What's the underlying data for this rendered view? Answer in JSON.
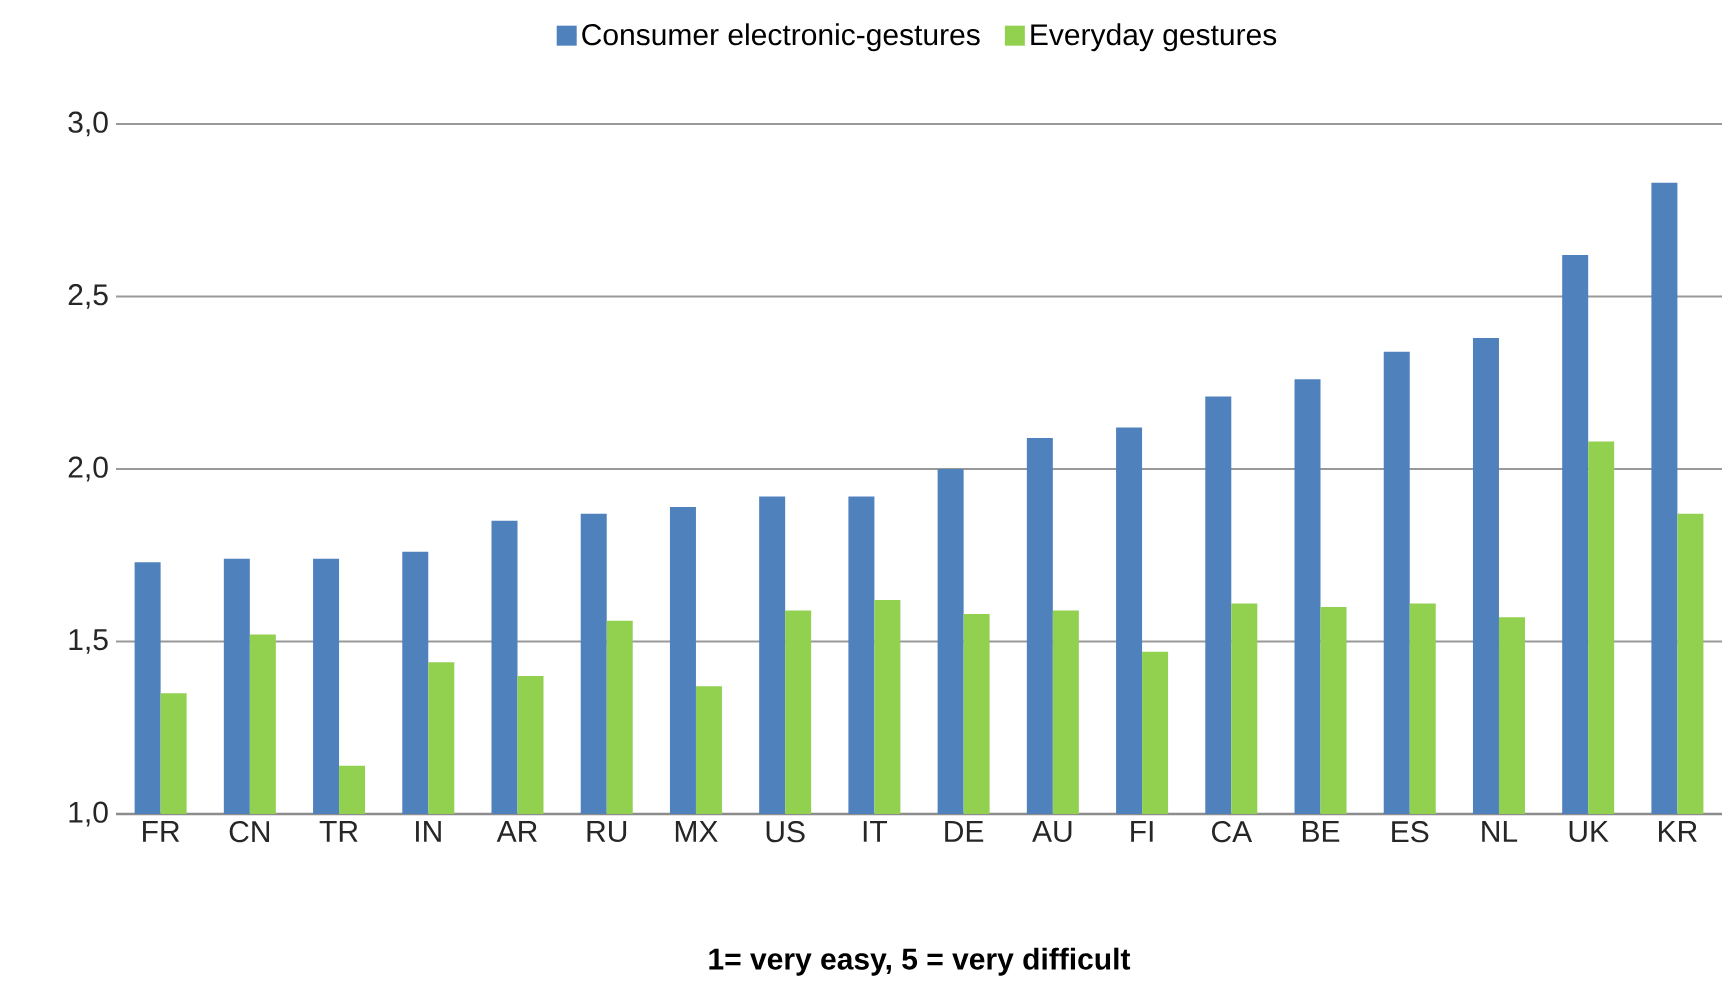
{
  "chart_data": {
    "type": "bar",
    "xlabel": "1= very easy, 5 = very difficult",
    "categories": [
      "FR",
      "CN",
      "TR",
      "IN",
      "AR",
      "RU",
      "MX",
      "US",
      "IT",
      "DE",
      "AU",
      "FI",
      "CA",
      "BE",
      "ES",
      "NL",
      "UK",
      "KR"
    ],
    "series": [
      {
        "name": "Consumer electronic-gestures",
        "color": "#4f81bd",
        "values": [
          1.73,
          1.74,
          1.74,
          1.76,
          1.85,
          1.87,
          1.89,
          1.92,
          1.92,
          2.0,
          2.09,
          2.12,
          2.21,
          2.26,
          2.34,
          2.38,
          2.62,
          2.83
        ]
      },
      {
        "name": "Everyday gestures",
        "color": "#92d050",
        "values": [
          1.35,
          1.52,
          1.14,
          1.44,
          1.4,
          1.56,
          1.37,
          1.59,
          1.62,
          1.58,
          1.59,
          1.47,
          1.61,
          1.6,
          1.61,
          1.57,
          2.08,
          1.87
        ]
      }
    ],
    "ylim": [
      1.0,
      3.0
    ],
    "yticks": [
      {
        "value": 1.0,
        "label": "1,0"
      },
      {
        "value": 1.5,
        "label": "1,5"
      },
      {
        "value": 2.0,
        "label": "2,0"
      },
      {
        "value": 2.5,
        "label": "2,5"
      },
      {
        "value": 3.0,
        "label": "3,0"
      }
    ],
    "grid": "y",
    "legend": "top"
  }
}
